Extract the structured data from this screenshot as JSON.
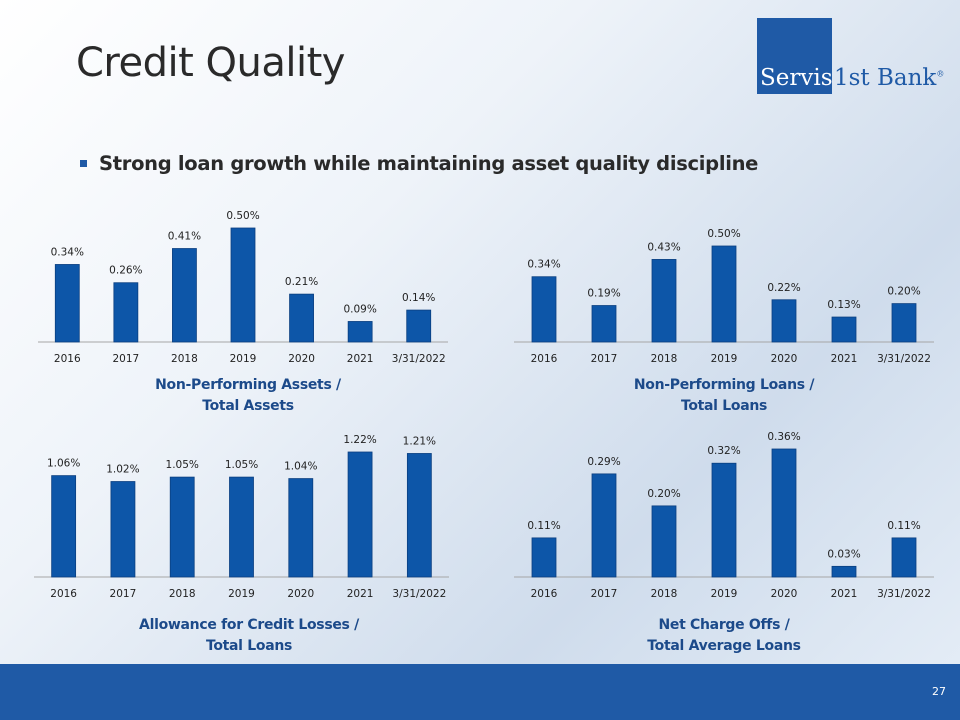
{
  "title": "Credit Quality",
  "logo": {
    "box_text": "Servis",
    "rest_text": "1st Bank",
    "mark": "®"
  },
  "bullet": "Strong loan growth while maintaining asset quality discipline",
  "page_number": "27",
  "colors": {
    "bar": "#0d56a8",
    "brand": "#1f5aa6",
    "label": "#1c4a8a"
  },
  "chart_data": [
    {
      "type": "bar",
      "title": "Non-Performing Assets / Total Assets",
      "title_lines": [
        "Non-Performing Assets /",
        "Total Assets"
      ],
      "categories": [
        "2016",
        "2017",
        "2018",
        "2019",
        "2020",
        "2021",
        "3/31/2022"
      ],
      "values": [
        0.34,
        0.26,
        0.41,
        0.5,
        0.21,
        0.09,
        0.14
      ],
      "labels": [
        "0.34%",
        "0.26%",
        "0.41%",
        "0.50%",
        "0.21%",
        "0.09%",
        "0.14%"
      ],
      "ylim": [
        0,
        0.5
      ]
    },
    {
      "type": "bar",
      "title": "Non-Performing Loans / Total Loans",
      "title_lines": [
        "Non-Performing Loans /",
        "Total Loans"
      ],
      "categories": [
        "2016",
        "2017",
        "2018",
        "2019",
        "2020",
        "2021",
        "3/31/2022"
      ],
      "values": [
        0.34,
        0.19,
        0.43,
        0.5,
        0.22,
        0.13,
        0.2
      ],
      "labels": [
        "0.34%",
        "0.19%",
        "0.43%",
        "0.50%",
        "0.22%",
        "0.13%",
        "0.20%"
      ],
      "ylim": [
        0,
        0.5
      ]
    },
    {
      "type": "bar",
      "title": "Allowance for Credit Losses / Total Loans",
      "title_lines": [
        "Allowance for Credit Losses /",
        "Total Loans"
      ],
      "categories": [
        "2016",
        "2017",
        "2018",
        "2019",
        "2020",
        "2021",
        "3/31/2022"
      ],
      "values": [
        1.06,
        1.02,
        1.05,
        1.05,
        1.04,
        1.22,
        1.21
      ],
      "labels": [
        "1.06%",
        "1.02%",
        "1.05%",
        "1.05%",
        "1.04%",
        "1.22%",
        "1.21%"
      ],
      "ylim": [
        0.8,
        1.22
      ]
    },
    {
      "type": "bar",
      "title": "Net Charge Offs / Total Average Loans",
      "title_lines": [
        "Net Charge Offs /",
        "Total Average Loans"
      ],
      "categories": [
        "2016",
        "2017",
        "2018",
        "2019",
        "2020",
        "2021",
        "3/31/2022"
      ],
      "values": [
        0.11,
        0.29,
        0.2,
        0.32,
        0.36,
        0.03,
        0.11
      ],
      "labels": [
        "0.11%",
        "0.29%",
        "0.20%",
        "0.32%",
        "0.36%",
        "0.03%",
        "0.11%"
      ],
      "ylim": [
        0,
        0.36
      ]
    }
  ]
}
